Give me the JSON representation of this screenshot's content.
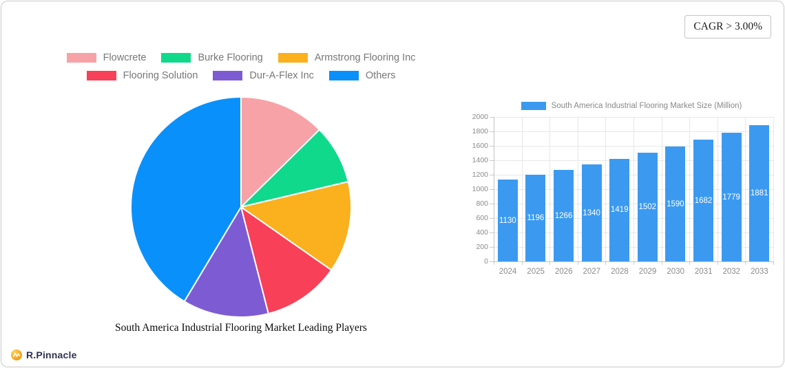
{
  "card": {
    "cagr_label": "CAGR > 3.00%"
  },
  "brand": {
    "name": "R.Pinnacle",
    "icon": "mountain-wave-circle",
    "icon_color": "#f9a825",
    "text_color": "#2e3150"
  },
  "chart_data": [
    {
      "type": "pie",
      "title": "South America Industrial Flooring Market Leading Players",
      "labels": [
        "Flowcrete",
        "Burke Flooring",
        "Armstrong Flooring Inc",
        "Flooring Solution",
        "Dur-A-Flex Inc",
        "Others"
      ],
      "values_percent": [
        12.6,
        8.7,
        13.4,
        11.3,
        12.6,
        41.4
      ],
      "colors": [
        "#f7a2a7",
        "#10d98c",
        "#fbb01d",
        "#f94059",
        "#7d5cd3",
        "#0a90fa"
      ],
      "legend_position": "top",
      "legend_rows": [
        [
          0,
          1,
          2
        ],
        [
          3,
          4,
          5
        ]
      ],
      "start_angle_deg": 0,
      "direction": "clockwise",
      "slice_border_color": "#ffffff"
    },
    {
      "type": "bar",
      "legend": "South America Industrial Flooring Market Size (Million)",
      "categories": [
        "2024",
        "2025",
        "2026",
        "2027",
        "2028",
        "2029",
        "2030",
        "2031",
        "2032",
        "2033"
      ],
      "values": [
        1130,
        1196,
        1266,
        1340,
        1419,
        1502,
        1590,
        1682,
        1779,
        1881
      ],
      "bar_color": "#3b9af0",
      "value_label_style": "white-inside-centered",
      "ylim": [
        0,
        2000
      ],
      "ytick_step": 200,
      "grid": true,
      "legend_position": "top"
    }
  ]
}
